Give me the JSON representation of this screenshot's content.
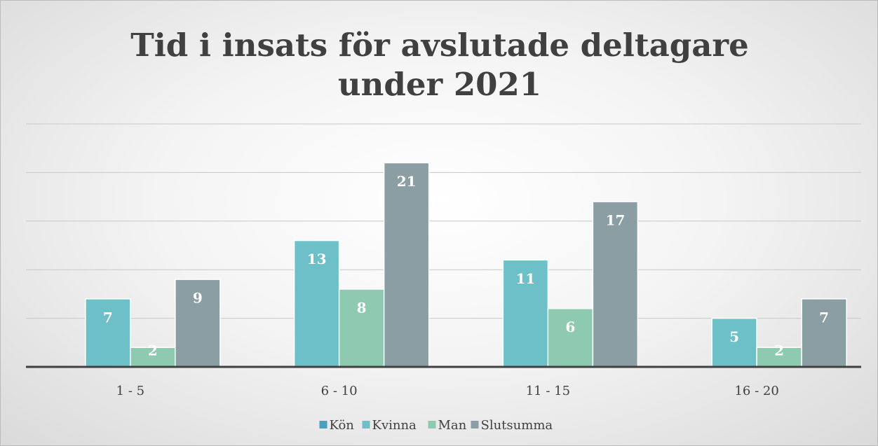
{
  "chart_data": {
    "type": "bar",
    "title": "Tid i insats för avslutade deltagare under 2021",
    "categories": [
      "1 - 5",
      "6 - 10",
      "11 - 15",
      "16 - 20"
    ],
    "series": [
      {
        "name": "Kön",
        "color": "#4a9fc1",
        "values": [
          null,
          null,
          null,
          null
        ]
      },
      {
        "name": "Kvinna",
        "color": "#6ec0c8",
        "values": [
          7,
          13,
          11,
          5
        ]
      },
      {
        "name": "Man",
        "color": "#8ecab0",
        "values": [
          2,
          8,
          6,
          2
        ]
      },
      {
        "name": "Slutsumma",
        "color": "#8a9ea3",
        "values": [
          9,
          21,
          17,
          7
        ]
      }
    ],
    "ylim": [
      0,
      25
    ],
    "yticks": [
      0,
      5,
      10,
      15,
      20,
      25
    ],
    "grid": true,
    "legend": "bottom"
  }
}
